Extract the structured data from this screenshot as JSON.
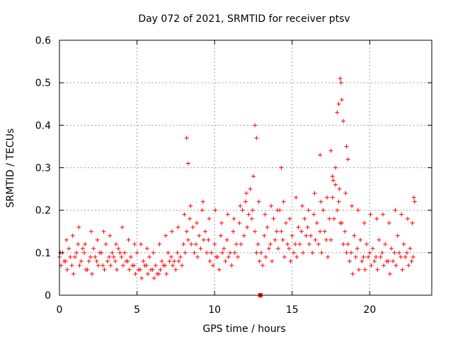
{
  "chart_data": {
    "type": "scatter",
    "title": "Day 072 of 2021, SRMTID for receiver ptsv",
    "xlabel": "GPS time / hours",
    "ylabel": "SRMTID / TECUs",
    "xlim": [
      0,
      24
    ],
    "ylim": [
      0,
      0.6
    ],
    "xticks": [
      0,
      5,
      10,
      15,
      20
    ],
    "yticks": [
      0,
      0.1,
      0.2,
      0.3,
      0.4,
      0.5,
      0.6
    ],
    "xtick_labels": [
      "0",
      "5",
      "10",
      "15",
      "20"
    ],
    "ytick_labels": [
      "0",
      "0.1",
      "0.2",
      "0.3",
      "0.4",
      "0.5",
      "0.6"
    ],
    "grid": true,
    "marker": "+",
    "marker_color": "#ff0000",
    "series": [
      {
        "name": "SRMTID",
        "x": [
          0.0,
          0.2,
          0.4,
          0.6,
          0.8,
          1.0,
          1.2,
          1.4,
          1.6,
          1.8,
          2.0,
          2.2,
          2.4,
          2.6,
          2.8,
          3.0,
          3.2,
          3.4,
          3.6,
          3.8,
          4.0,
          4.2,
          4.4,
          4.6,
          4.8,
          5.0,
          5.2,
          5.4,
          5.6,
          5.8,
          6.0,
          6.2,
          6.4,
          6.6,
          6.8,
          7.0,
          7.2,
          7.4,
          7.6,
          7.8,
          8.0,
          8.2,
          8.4,
          8.6,
          8.8,
          9.0,
          9.2,
          9.4,
          9.6,
          9.8,
          10.0,
          10.2,
          10.4,
          10.6,
          10.8,
          11.0,
          11.2,
          11.4,
          11.6,
          11.8,
          12.0,
          12.2,
          12.4,
          12.6,
          12.8,
          13.0,
          13.2,
          13.4,
          13.6,
          13.8,
          14.0,
          14.2,
          14.4,
          14.6,
          14.8,
          15.0,
          15.2,
          15.4,
          15.6,
          15.8,
          16.0,
          16.2,
          16.4,
          16.6,
          16.8,
          17.0,
          17.2,
          17.4,
          17.6,
          17.8,
          18.0,
          18.2,
          18.4,
          18.6,
          18.8,
          19.0,
          19.2,
          19.4,
          19.6,
          19.8,
          20.0,
          20.2,
          20.4,
          20.6,
          20.8,
          21.0,
          21.2,
          21.4,
          21.6,
          21.8,
          22.0,
          22.2,
          22.4,
          22.6,
          22.8,
          0.1,
          0.3,
          0.5,
          0.7,
          0.9,
          1.1,
          1.3,
          1.5,
          1.7,
          1.9,
          2.1,
          2.3,
          2.5,
          2.7,
          2.9,
          3.1,
          3.3,
          3.5,
          3.7,
          3.9,
          4.1,
          4.3,
          4.5,
          4.7,
          4.9,
          5.1,
          5.3,
          5.5,
          5.7,
          5.9,
          6.1,
          6.3,
          6.5,
          6.7,
          6.9,
          7.1,
          7.3,
          7.5,
          7.7,
          7.9,
          8.1,
          8.3,
          8.5,
          8.7,
          8.9,
          9.1,
          9.3,
          9.5,
          9.7,
          9.9,
          10.1,
          10.3,
          10.5,
          10.7,
          10.9,
          11.1,
          11.3,
          11.5,
          11.7,
          11.9,
          12.1,
          12.3,
          12.5,
          12.7,
          12.9,
          13.1,
          13.3,
          13.5,
          13.7,
          13.9,
          14.1,
          14.3,
          14.5,
          14.7,
          14.9,
          15.1,
          15.3,
          15.5,
          15.7,
          15.9,
          16.1,
          16.3,
          16.5,
          16.7,
          16.9,
          17.1,
          17.3,
          17.5,
          17.7,
          17.9,
          18.1,
          18.3,
          18.5,
          18.7,
          18.9,
          19.1,
          19.3,
          19.5,
          19.7,
          19.9,
          20.1,
          20.3,
          20.5,
          20.7,
          20.9,
          21.1,
          21.3,
          21.5,
          21.7,
          21.9,
          22.1,
          22.3,
          22.5,
          22.7,
          8.2,
          8.3,
          12.6,
          12.7,
          14.3,
          16.8,
          17.5,
          17.6,
          17.8,
          17.9,
          18.0,
          18.1,
          18.15,
          18.2,
          18.3,
          18.5,
          18.6,
          22.85,
          22.9,
          0.05,
          0.45,
          0.85,
          1.25,
          1.65,
          2.05,
          2.45,
          2.85,
          3.25,
          3.65,
          4.05,
          4.45,
          4.85,
          5.25,
          5.65,
          6.05,
          6.45,
          6.85,
          7.25,
          7.65,
          8.05,
          8.45,
          8.85,
          9.25,
          9.65,
          10.05,
          10.45,
          10.85,
          11.25,
          11.65,
          12.05,
          12.45,
          12.85,
          13.25,
          13.65,
          14.05,
          14.45,
          14.85,
          15.25,
          15.65,
          16.05,
          16.45,
          16.85,
          17.25,
          17.65,
          18.05,
          18.45,
          18.85,
          19.25,
          19.65,
          20.05,
          20.45,
          20.85,
          21.25,
          21.65,
          22.05,
          22.45,
          22.75
        ],
        "y": [
          0.09,
          0.1,
          0.08,
          0.11,
          0.07,
          0.09,
          0.12,
          0.08,
          0.1,
          0.06,
          0.09,
          0.11,
          0.08,
          0.1,
          0.07,
          0.12,
          0.09,
          0.1,
          0.08,
          0.11,
          0.09,
          0.1,
          0.08,
          0.09,
          0.07,
          0.1,
          0.06,
          0.08,
          0.07,
          0.09,
          0.06,
          0.07,
          0.05,
          0.08,
          0.07,
          0.1,
          0.09,
          0.08,
          0.1,
          0.09,
          0.12,
          0.15,
          0.18,
          0.16,
          0.12,
          0.14,
          0.2,
          0.15,
          0.13,
          0.1,
          0.12,
          0.09,
          0.14,
          0.11,
          0.13,
          0.1,
          0.15,
          0.12,
          0.17,
          0.2,
          0.22,
          0.19,
          0.18,
          0.15,
          0.12,
          0.1,
          0.14,
          0.16,
          0.12,
          0.18,
          0.15,
          0.2,
          0.13,
          0.17,
          0.11,
          0.14,
          0.12,
          0.16,
          0.15,
          0.18,
          0.16,
          0.14,
          0.19,
          0.17,
          0.15,
          0.2,
          0.13,
          0.18,
          0.23,
          0.26,
          0.22,
          0.17,
          0.15,
          0.12,
          0.1,
          0.14,
          0.11,
          0.13,
          0.09,
          0.12,
          0.1,
          0.11,
          0.09,
          0.13,
          0.1,
          0.12,
          0.08,
          0.11,
          0.1,
          0.14,
          0.09,
          0.12,
          0.1,
          0.11,
          0.09,
          0.07,
          0.08,
          0.06,
          0.09,
          0.05,
          0.1,
          0.07,
          0.11,
          0.06,
          0.08,
          0.05,
          0.09,
          0.07,
          0.1,
          0.06,
          0.08,
          0.07,
          0.09,
          0.06,
          0.1,
          0.07,
          0.08,
          0.06,
          0.07,
          0.05,
          0.06,
          0.04,
          0.07,
          0.05,
          0.06,
          0.04,
          0.05,
          0.06,
          0.07,
          0.05,
          0.08,
          0.07,
          0.06,
          0.08,
          0.07,
          0.1,
          0.13,
          0.12,
          0.1,
          0.09,
          0.11,
          0.13,
          0.1,
          0.08,
          0.07,
          0.09,
          0.06,
          0.1,
          0.08,
          0.09,
          0.07,
          0.1,
          0.09,
          0.12,
          0.14,
          0.16,
          0.25,
          0.28,
          0.1,
          0.08,
          0.07,
          0.09,
          0.11,
          0.08,
          0.13,
          0.11,
          0.15,
          0.09,
          0.12,
          0.08,
          0.1,
          0.09,
          0.12,
          0.1,
          0.14,
          0.12,
          0.1,
          0.13,
          0.12,
          0.1,
          0.15,
          0.09,
          0.13,
          0.18,
          0.2,
          0.17,
          0.12,
          0.1,
          0.08,
          0.05,
          0.09,
          0.06,
          0.08,
          0.06,
          0.09,
          0.07,
          0.08,
          0.06,
          0.09,
          0.07,
          0.08,
          0.05,
          0.08,
          0.07,
          0.1,
          0.06,
          0.09,
          0.07,
          0.08,
          0.37,
          0.31,
          0.4,
          0.37,
          0.3,
          0.33,
          0.34,
          0.28,
          0.3,
          0.43,
          0.45,
          0.51,
          0.5,
          0.46,
          0.41,
          0.35,
          0.32,
          0.23,
          0.22,
          0.1,
          0.13,
          0.14,
          0.16,
          0.12,
          0.15,
          0.13,
          0.15,
          0.14,
          0.12,
          0.16,
          0.13,
          0.12,
          0.12,
          0.11,
          0.1,
          0.12,
          0.14,
          0.15,
          0.16,
          0.19,
          0.21,
          0.17,
          0.22,
          0.18,
          0.2,
          0.17,
          0.19,
          0.18,
          0.21,
          0.24,
          0.2,
          0.22,
          0.19,
          0.21,
          0.2,
          0.22,
          0.18,
          0.23,
          0.21,
          0.2,
          0.24,
          0.22,
          0.23,
          0.27,
          0.25,
          0.24,
          0.21,
          0.2,
          0.17,
          0.19,
          0.18,
          0.19,
          0.17,
          0.2,
          0.19,
          0.18,
          0.17
        ]
      }
    ],
    "extra_marker": {
      "x": 12.95,
      "y": 0.0,
      "shape": "square"
    }
  }
}
